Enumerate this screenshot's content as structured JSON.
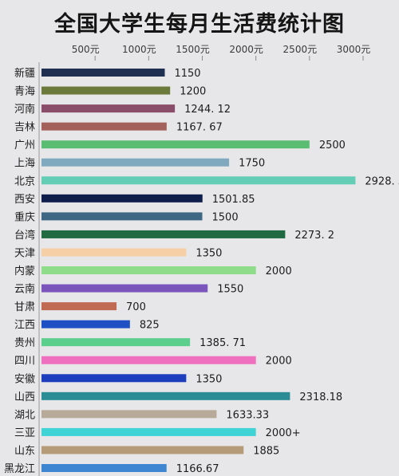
{
  "title": "全国大学生每月生活费统计图",
  "chart_data": {
    "type": "bar",
    "orientation": "horizontal",
    "title": "全国大学生每月生活费统计图",
    "xlim": [
      0,
      3000
    ],
    "x_ticks": [
      {
        "value": 500,
        "label": "500元"
      },
      {
        "value": 1000,
        "label": "1000元"
      },
      {
        "value": 1500,
        "label": "1500元"
      },
      {
        "value": 2000,
        "label": "2000元"
      },
      {
        "value": 2500,
        "label": "2500元"
      },
      {
        "value": 3000,
        "label": "3000元"
      }
    ],
    "grid": false,
    "categories": [
      "新疆",
      "青海",
      "河南",
      "吉林",
      "广州",
      "上海",
      "北京",
      "西安",
      "重庆",
      "台湾",
      "天津",
      "内蒙",
      "云南",
      "甘肃",
      "江西",
      "贵州",
      "四川",
      "安徽",
      "山西",
      "湖北",
      "三亚",
      "山东",
      "黑龙江"
    ],
    "values": [
      1150,
      1200,
      1244.12,
      1167.67,
      2500,
      1750,
      2928.5,
      1501.85,
      1500,
      2273.2,
      1350,
      2000,
      1550,
      700,
      825,
      1385.71,
      2000,
      1350,
      2318.18,
      1633.33,
      2000,
      1885,
      1166.67
    ],
    "value_labels": [
      "1150",
      "1200",
      "1244. 12",
      "1167. 67",
      "2500",
      "1750",
      "2928. 5",
      "1501.85",
      "1500",
      "2273. 2",
      "1350",
      "2000",
      "1550",
      "700",
      "825",
      "1385. 71",
      "2000",
      "1350",
      "2318.18",
      "1633.33",
      "2000+",
      "1885",
      "1166.67"
    ],
    "colors": [
      "#1f2f52",
      "#6b7a3a",
      "#8a4e6a",
      "#a4615b",
      "#5bbd72",
      "#80a9bf",
      "#63cdb6",
      "#0f1e4a",
      "#3e6783",
      "#1f6a40",
      "#f6cfa6",
      "#8fdc8a",
      "#7b55bc",
      "#c06a54",
      "#1f4fc4",
      "#5ccf8c",
      "#ef70bf",
      "#1d3fbe",
      "#2a8c95",
      "#b8aa98",
      "#3fd3d6",
      "#b59b77",
      "#3f86d2"
    ]
  }
}
